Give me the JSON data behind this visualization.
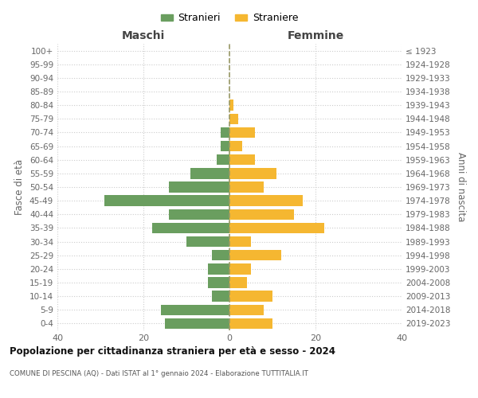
{
  "age_groups": [
    "0-4",
    "5-9",
    "10-14",
    "15-19",
    "20-24",
    "25-29",
    "30-34",
    "35-39",
    "40-44",
    "45-49",
    "50-54",
    "55-59",
    "60-64",
    "65-69",
    "70-74",
    "75-79",
    "80-84",
    "85-89",
    "90-94",
    "95-99",
    "100+"
  ],
  "birth_years": [
    "2019-2023",
    "2014-2018",
    "2009-2013",
    "2004-2008",
    "1999-2003",
    "1994-1998",
    "1989-1993",
    "1984-1988",
    "1979-1983",
    "1974-1978",
    "1969-1973",
    "1964-1968",
    "1959-1963",
    "1954-1958",
    "1949-1953",
    "1944-1948",
    "1939-1943",
    "1934-1938",
    "1929-1933",
    "1924-1928",
    "≤ 1923"
  ],
  "maschi": [
    15,
    16,
    4,
    5,
    5,
    4,
    10,
    18,
    14,
    29,
    14,
    9,
    3,
    2,
    2,
    0,
    0,
    0,
    0,
    0,
    0
  ],
  "femmine": [
    10,
    8,
    10,
    4,
    5,
    12,
    5,
    22,
    15,
    17,
    8,
    11,
    6,
    3,
    6,
    2,
    1,
    0,
    0,
    0,
    0
  ],
  "color_maschi": "#6a9e5f",
  "color_femmine": "#f5b731",
  "title1": "Popolazione per cittadinanza straniera per età e sesso - 2024",
  "title2": "COMUNE DI PESCINA (AQ) - Dati ISTAT al 1° gennaio 2024 - Elaborazione TUTTITALIA.IT",
  "xlabel_left": "Maschi",
  "xlabel_right": "Femmine",
  "ylabel_left": "Fasce di età",
  "ylabel_right": "Anni di nascita",
  "legend_maschi": "Stranieri",
  "legend_femmine": "Straniere",
  "xlim": 40,
  "bg_color": "#ffffff",
  "grid_color": "#cccccc",
  "dashed_line_color": "#999966"
}
